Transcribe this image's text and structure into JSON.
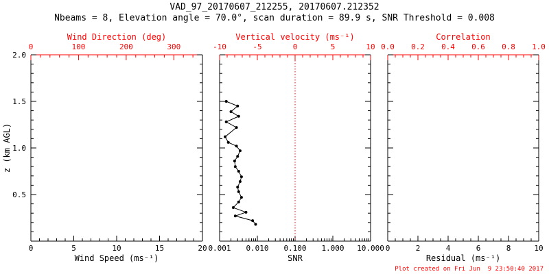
{
  "chart_data": {
    "type": "line",
    "title": "VAD_97_20170607_212255, 20170607.212352",
    "subtitle": "Nbeams = 8, Elevation angle = 70.0°, scan duration = 89.9 s, SNR Threshold = 0.008",
    "legend": "none",
    "grid": "off",
    "y_axis": {
      "label": "z (km AGL)",
      "min": 0,
      "max": 2.0,
      "minor_step": 0.1,
      "ticks": [
        {
          "v": 0.5,
          "t": "0.5"
        },
        {
          "v": 1.0,
          "t": "1.0"
        },
        {
          "v": 1.5,
          "t": "1.5"
        },
        {
          "v": 2.0,
          "t": "2.0"
        }
      ]
    },
    "panels": [
      {
        "id": "wind-speed",
        "bottom": {
          "label": "Wind Speed (ms⁻¹)",
          "scale": "linear",
          "min": 0,
          "max": 20,
          "minor_step": 1,
          "color": "#000000",
          "ticks": [
            {
              "v": 0,
              "t": "0"
            },
            {
              "v": 5,
              "t": "5"
            },
            {
              "v": 10,
              "t": "10"
            },
            {
              "v": 15,
              "t": "15"
            },
            {
              "v": 20,
              "t": "20"
            }
          ]
        },
        "top": {
          "label": "Wind Direction (deg)",
          "scale": "linear",
          "min": 0,
          "max": 360,
          "minor_step": 20,
          "color": "#ff0000",
          "ticks": [
            {
              "v": 0,
              "t": "0"
            },
            {
              "v": 100,
              "t": "100"
            },
            {
              "v": 200,
              "t": "200"
            },
            {
              "v": 300,
              "t": "300"
            }
          ]
        },
        "series": []
      },
      {
        "id": "snr",
        "bottom": {
          "label": "SNR",
          "scale": "log",
          "min": 0.001,
          "max": 10,
          "color": "#000000",
          "ticks": [
            {
              "v": 0.001,
              "t": "0.001"
            },
            {
              "v": 0.01,
              "t": "0.010"
            },
            {
              "v": 0.1,
              "t": "0.100"
            },
            {
              "v": 1,
              "t": "1.000"
            },
            {
              "v": 10,
              "t": "10.000"
            }
          ]
        },
        "top": {
          "label": "Vertical velocity (ms⁻¹)",
          "scale": "linear",
          "min": -10,
          "max": 10,
          "minor_step": 1,
          "color": "#ff0000",
          "ticks": [
            {
              "v": -10,
              "t": "-10"
            },
            {
              "v": -5,
              "t": "-5"
            },
            {
              "v": 0,
              "t": "0"
            },
            {
              "v": 5,
              "t": "5"
            },
            {
              "v": 10,
              "t": "10"
            }
          ]
        },
        "refline": {
          "x": 0.1,
          "color": "#ff0000",
          "style": "dotted",
          "meaning": "zero vertical velocity"
        },
        "series": [
          {
            "name": "snr-profile",
            "color": "#000000",
            "marker": "circle",
            "points_format": "[snr, z_km]",
            "points": [
              [
                0.0015,
                1.5
              ],
              [
                0.003,
                1.45
              ],
              [
                0.002,
                1.39
              ],
              [
                0.0032,
                1.34
              ],
              [
                0.0015,
                1.28
              ],
              [
                0.0028,
                1.22
              ],
              [
                0.0014,
                1.12
              ],
              [
                0.0017,
                1.06
              ],
              [
                0.0028,
                1.02
              ],
              [
                0.0035,
                0.97
              ],
              [
                0.003,
                0.91
              ],
              [
                0.0025,
                0.86
              ],
              [
                0.0026,
                0.8
              ],
              [
                0.0032,
                0.75
              ],
              [
                0.0038,
                0.69
              ],
              [
                0.0035,
                0.64
              ],
              [
                0.003,
                0.58
              ],
              [
                0.0032,
                0.53
              ],
              [
                0.0038,
                0.47
              ],
              [
                0.0032,
                0.42
              ],
              [
                0.0023,
                0.36
              ],
              [
                0.005,
                0.31
              ],
              [
                0.0026,
                0.27
              ],
              [
                0.0075,
                0.22
              ],
              [
                0.009,
                0.18
              ]
            ]
          }
        ]
      },
      {
        "id": "residual",
        "bottom": {
          "label": "Residual (ms⁻¹)",
          "scale": "linear",
          "min": 0,
          "max": 10,
          "minor_step": 0.5,
          "color": "#000000",
          "ticks": [
            {
              "v": 0,
              "t": "0"
            },
            {
              "v": 2,
              "t": "2"
            },
            {
              "v": 4,
              "t": "4"
            },
            {
              "v": 6,
              "t": "6"
            },
            {
              "v": 8,
              "t": "8"
            },
            {
              "v": 10,
              "t": "10"
            }
          ]
        },
        "top": {
          "label": "Correlation",
          "scale": "linear",
          "min": 0,
          "max": 1,
          "minor_step": 0.05,
          "color": "#ff0000",
          "ticks": [
            {
              "v": 0,
              "t": "0.0"
            },
            {
              "v": 0.2,
              "t": "0.2"
            },
            {
              "v": 0.4,
              "t": "0.4"
            },
            {
              "v": 0.6,
              "t": "0.6"
            },
            {
              "v": 0.8,
              "t": "0.8"
            },
            {
              "v": 1.0,
              "t": "1.0"
            }
          ]
        },
        "series": []
      }
    ]
  },
  "footer": "Plot created on Fri Jun  9 23:50:40 2017",
  "colors": {
    "primary": "#000000",
    "secondary": "#ff0000",
    "background": "#ffffff"
  }
}
